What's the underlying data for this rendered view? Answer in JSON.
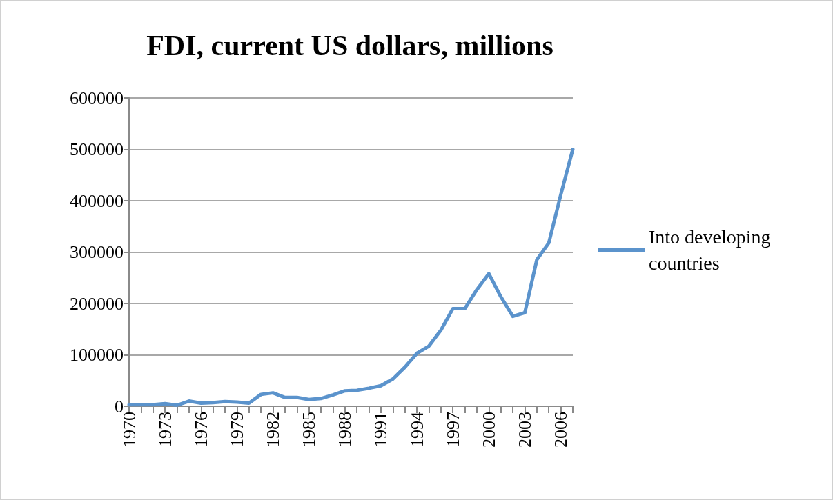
{
  "chart_data": {
    "type": "line",
    "title": "FDI, current US dollars, millions",
    "categories": [
      "1970",
      null,
      null,
      "1973",
      null,
      null,
      "1976",
      null,
      null,
      "1979",
      null,
      null,
      "1982",
      null,
      null,
      "1985",
      null,
      null,
      "1988",
      null,
      null,
      "1991",
      null,
      null,
      "1994",
      null,
      null,
      "1997",
      null,
      null,
      "2000",
      null,
      null,
      "2003",
      null,
      null,
      "2006",
      null
    ],
    "series": [
      {
        "name": "Into developing countries",
        "color": "#5b93cc",
        "values": [
          3000,
          3000,
          3000,
          5000,
          2000,
          10000,
          6000,
          7000,
          9000,
          8000,
          6000,
          23000,
          26000,
          17000,
          17000,
          13000,
          15000,
          22000,
          30000,
          31000,
          35000,
          40000,
          53000,
          76000,
          103000,
          117000,
          148000,
          190000,
          190000,
          227000,
          258000,
          213000,
          175000,
          182000,
          285000,
          318000,
          412000,
          500000
        ]
      }
    ],
    "ylim": [
      0,
      600000
    ],
    "yticks": [
      0,
      100000,
      200000,
      300000,
      400000,
      500000,
      600000
    ],
    "grid": "y",
    "legend": "right",
    "marker": "none",
    "line_style": "solid"
  }
}
